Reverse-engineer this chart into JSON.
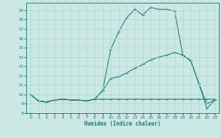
{
  "xlabel": "Humidex (Indice chaleur)",
  "background_color": "#cce8e4",
  "line_color": "#1a7a6e",
  "grid_color": "#a8d4d0",
  "xlim": [
    -0.5,
    23.5
  ],
  "ylim": [
    8.0,
    19.8
  ],
  "xticks": [
    0,
    1,
    2,
    3,
    4,
    5,
    6,
    7,
    8,
    9,
    10,
    11,
    12,
    13,
    14,
    15,
    16,
    17,
    18,
    19,
    20,
    21,
    22,
    23
  ],
  "yticks": [
    8,
    9,
    10,
    11,
    12,
    13,
    14,
    15,
    16,
    17,
    18,
    19
  ],
  "line1_x": [
    0,
    1,
    2,
    3,
    4,
    5,
    6,
    7,
    8,
    9,
    10,
    11,
    12,
    13,
    14,
    15,
    16,
    17,
    18,
    19,
    20,
    21,
    22,
    23
  ],
  "line1_y": [
    10.0,
    9.3,
    9.2,
    9.4,
    9.5,
    9.4,
    9.4,
    9.3,
    9.5,
    10.4,
    14.8,
    16.7,
    18.2,
    19.1,
    18.5,
    19.3,
    19.1,
    19.1,
    18.9,
    14.2,
    13.6,
    11.2,
    8.5,
    9.4
  ],
  "line2_x": [
    0,
    1,
    2,
    3,
    4,
    5,
    6,
    7,
    8,
    9,
    10,
    11,
    12,
    13,
    14,
    15,
    16,
    17,
    18,
    19,
    20,
    21,
    22,
    23
  ],
  "line2_y": [
    10.0,
    9.3,
    9.2,
    9.4,
    9.5,
    9.4,
    9.4,
    9.3,
    9.5,
    10.4,
    11.7,
    11.9,
    12.3,
    12.8,
    13.2,
    13.7,
    14.0,
    14.2,
    14.5,
    14.2,
    13.6,
    11.2,
    9.0,
    9.4
  ],
  "line3_x": [
    0,
    1,
    2,
    3,
    4,
    5,
    6,
    7,
    8,
    9,
    10,
    11,
    12,
    13,
    14,
    15,
    16,
    17,
    18,
    19,
    20,
    21,
    22,
    23
  ],
  "line3_y": [
    10.0,
    9.3,
    9.2,
    9.4,
    9.5,
    9.4,
    9.4,
    9.3,
    9.5,
    9.5,
    9.5,
    9.5,
    9.5,
    9.5,
    9.5,
    9.5,
    9.5,
    9.5,
    9.5,
    9.5,
    9.5,
    9.5,
    9.5,
    9.5
  ]
}
